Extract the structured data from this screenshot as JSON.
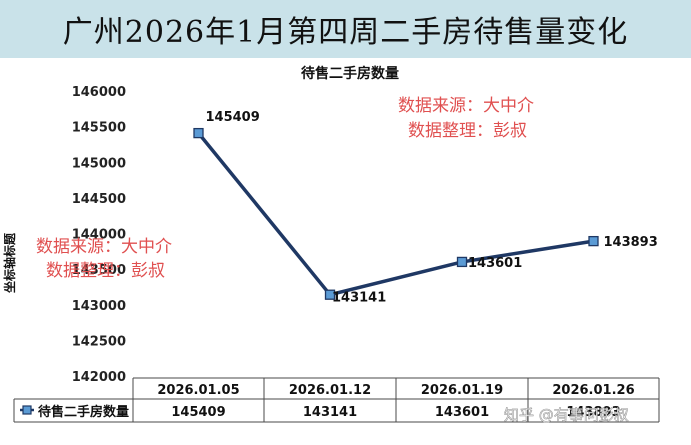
{
  "page_title": "广州2026年1月第四周二手房待售量变化",
  "chart_data": {
    "type": "line",
    "title": "待售二手房数量",
    "ylabel": "坐标轴标题",
    "xlabel": "",
    "categories": [
      "2026.01.05",
      "2026.01.12",
      "2026.01.19",
      "2026.01.26"
    ],
    "series": [
      {
        "name": "待售二手房数量",
        "values": [
          145409,
          143141,
          143601,
          143893
        ]
      }
    ],
    "ylim": [
      142000,
      146000
    ],
    "yticks": [
      142000,
      142500,
      143000,
      143500,
      144000,
      144500,
      145000,
      145500,
      146000
    ],
    "table_values": [
      "145409",
      "143141",
      "143601",
      "143893"
    ],
    "grid": false,
    "legend": "data-table",
    "line_color": "#1f3864",
    "marker_color": "#5b9bd5"
  },
  "watermarks": {
    "top_line1": "数据来源：大中介",
    "top_line2": "数据整理：彭叔",
    "left_line1": "数据来源：大中介",
    "left_line2": "数据整理：彭叔",
    "corner": "知乎 @有事问彭叔"
  }
}
